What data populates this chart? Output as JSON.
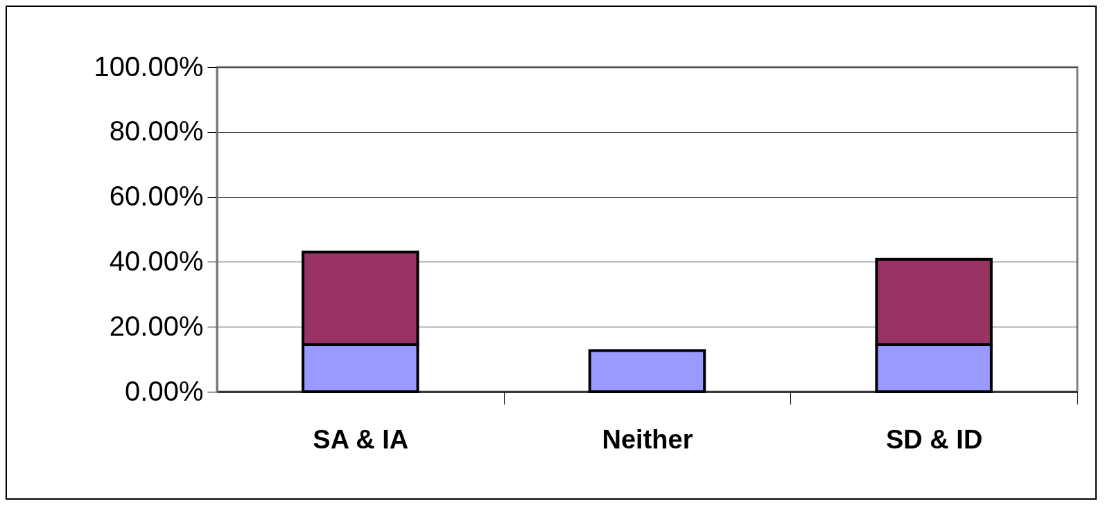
{
  "chart_data": {
    "type": "bar",
    "stacked": true,
    "categories": [
      "SA & IA",
      "Neither",
      "SD & ID"
    ],
    "series": [
      {
        "color": "#9999ff",
        "values": [
          14.5,
          12.7,
          14.5
        ]
      },
      {
        "color": "#993366",
        "values": [
          28.5,
          null,
          26.3
        ]
      }
    ],
    "ylim": [
      0,
      100
    ],
    "yticks": [
      {
        "value": 0,
        "label": "0.00%"
      },
      {
        "value": 20,
        "label": "20.00%"
      },
      {
        "value": 40,
        "label": "40.00%"
      },
      {
        "value": 60,
        "label": "60.00%"
      },
      {
        "value": 80,
        "label": "80.00%"
      },
      {
        "value": 100,
        "label": "100.00%"
      }
    ],
    "grid": "y",
    "legend": false
  }
}
